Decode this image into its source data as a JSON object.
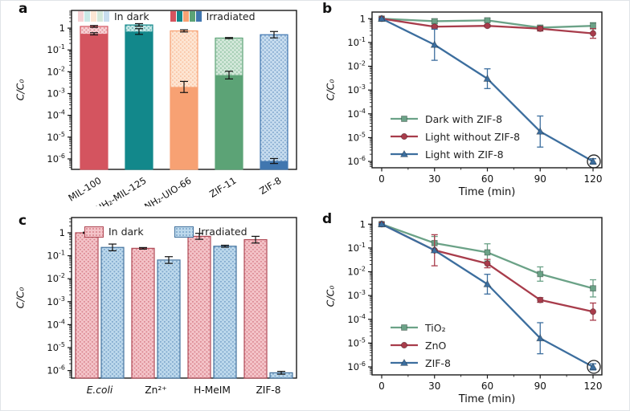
{
  "figure_title": "",
  "chart_data": [
    {
      "panel_label": "a",
      "type": "bar",
      "log_y": true,
      "ylabel": "C/C₀",
      "ylim": [
        3.3e-07,
        6.5
      ],
      "ytick_exponents": [
        0,
        -1,
        -2,
        -3,
        -4,
        -5,
        -6
      ],
      "categories": [
        "MIL-100",
        "NH₂-MIL-125",
        "NH₂-UIO-66",
        "ZIF-11",
        "ZIF-8"
      ],
      "rotate_category_labels": true,
      "series": [
        {
          "name": "In dark",
          "style": "hatched",
          "values": [
            1.2,
            1.4,
            0.75,
            0.35,
            0.5
          ],
          "err_factor": [
            1.1,
            1.15,
            1.12,
            1.06,
            1.4
          ]
        },
        {
          "name": "Irradiated",
          "style": "solid",
          "values": [
            0.55,
            0.7,
            0.002,
            0.007,
            8e-07
          ],
          "err_factor": [
            1.12,
            1.35,
            1.8,
            1.5,
            1.3
          ]
        }
      ],
      "bar_colors_solid": [
        "#d4545f",
        "#12888b",
        "#f7a173",
        "#5ca376",
        "#4076af"
      ],
      "bar_colors_light": [
        "#f6d2d5",
        "#c9e9e7",
        "#fde6d4",
        "#d3e8da",
        "#c8ddef"
      ],
      "legend_position": "top-inside"
    },
    {
      "panel_label": "b",
      "type": "line",
      "log_y": true,
      "xlabel": "Time (min)",
      "ylabel": "C/C₀",
      "x": [
        0,
        30,
        60,
        90,
        120
      ],
      "xticks": [
        0,
        30,
        60,
        90,
        120
      ],
      "ylim": [
        5.4e-07,
        1.9
      ],
      "ytick_exponents": [
        0,
        -1,
        -2,
        -3,
        -4,
        -5,
        -6
      ],
      "legend_position": "bottom-left-inside",
      "series": [
        {
          "name": "Dark with ZIF-8",
          "color": "#6ba287",
          "marker": "square",
          "values": [
            1,
            0.78,
            0.85,
            0.42,
            0.5
          ],
          "err_factor": [
            1.08,
            1.25,
            1.2,
            1.2,
            1.35
          ]
        },
        {
          "name": "Light without ZIF-8",
          "color": "#a83c4b",
          "marker": "circle",
          "values": [
            1,
            0.46,
            0.5,
            0.38,
            0.24
          ],
          "err_factor": [
            1.08,
            1.15,
            1.12,
            1.25,
            1.6
          ]
        },
        {
          "name": "Light with ZIF-8",
          "color": "#3c6e9e",
          "marker": "triangle",
          "values": [
            1,
            0.08,
            0.003,
            1.8e-05,
            1e-06
          ],
          "err_factor": [
            1.05,
            4.5,
            2.6,
            4.5,
            1.3
          ],
          "circle_last_point": true
        }
      ]
    },
    {
      "panel_label": "c",
      "type": "bar",
      "log_y": true,
      "ylabel": "C/C₀",
      "ylim": [
        4.7e-07,
        4.6
      ],
      "ytick_exponents": [
        0,
        -1,
        -2,
        -3,
        -4,
        -5,
        -6
      ],
      "categories": [
        "E.coli",
        "Zn²⁺",
        "H-MeIM",
        "ZIF-8"
      ],
      "categories_italic": [
        true,
        false,
        false,
        false
      ],
      "rotate_category_labels": false,
      "legend_position": "top-inside",
      "series": [
        {
          "name": "In dark",
          "fill": "#f4c4c9",
          "hatch": "#c45864",
          "border": "#b04a56",
          "values": [
            1.0,
            0.21,
            0.7,
            0.5
          ],
          "err_factor": [
            1.06,
            1.08,
            1.35,
            1.4
          ]
        },
        {
          "name": "Irradiated",
          "fill": "#bdd9ec",
          "hatch": "#4d80b3",
          "border": "#45749f",
          "values": [
            0.23,
            0.065,
            0.26,
            8e-07
          ],
          "err_factor": [
            1.4,
            1.4,
            1.1,
            1.15
          ]
        }
      ]
    },
    {
      "panel_label": "d",
      "type": "line",
      "log_y": true,
      "xlabel": "Time (min)",
      "ylabel": "C/C₀",
      "x": [
        0,
        30,
        60,
        90,
        120
      ],
      "xticks": [
        0,
        30,
        60,
        90,
        120
      ],
      "ylim": [
        4.6e-07,
        1.9
      ],
      "ytick_exponents": [
        0,
        -1,
        -2,
        -3,
        -4,
        -5,
        -6
      ],
      "legend_position": "bottom-left-inside",
      "series": [
        {
          "name": "TiO₂",
          "color": "#6ba287",
          "marker": "square",
          "values": [
            1,
            0.16,
            0.065,
            0.008,
            0.002
          ],
          "err_factor": [
            1.06,
            1.9,
            2.3,
            2.0,
            2.3
          ]
        },
        {
          "name": "ZnO",
          "color": "#a83c4b",
          "marker": "circle",
          "values": [
            1,
            0.08,
            0.022,
            0.00065,
            0.00021
          ],
          "err_factor": [
            1.06,
            4.5,
            1.5,
            1.25,
            2.3
          ]
        },
        {
          "name": "ZIF-8",
          "color": "#3c6e9e",
          "marker": "triangle",
          "values": [
            1,
            0.08,
            0.003,
            1.6e-05,
            1e-06
          ],
          "err_factor": [
            1.05,
            1.0,
            2.6,
            4.5,
            1.35
          ],
          "circle_last_point": true
        }
      ]
    }
  ]
}
